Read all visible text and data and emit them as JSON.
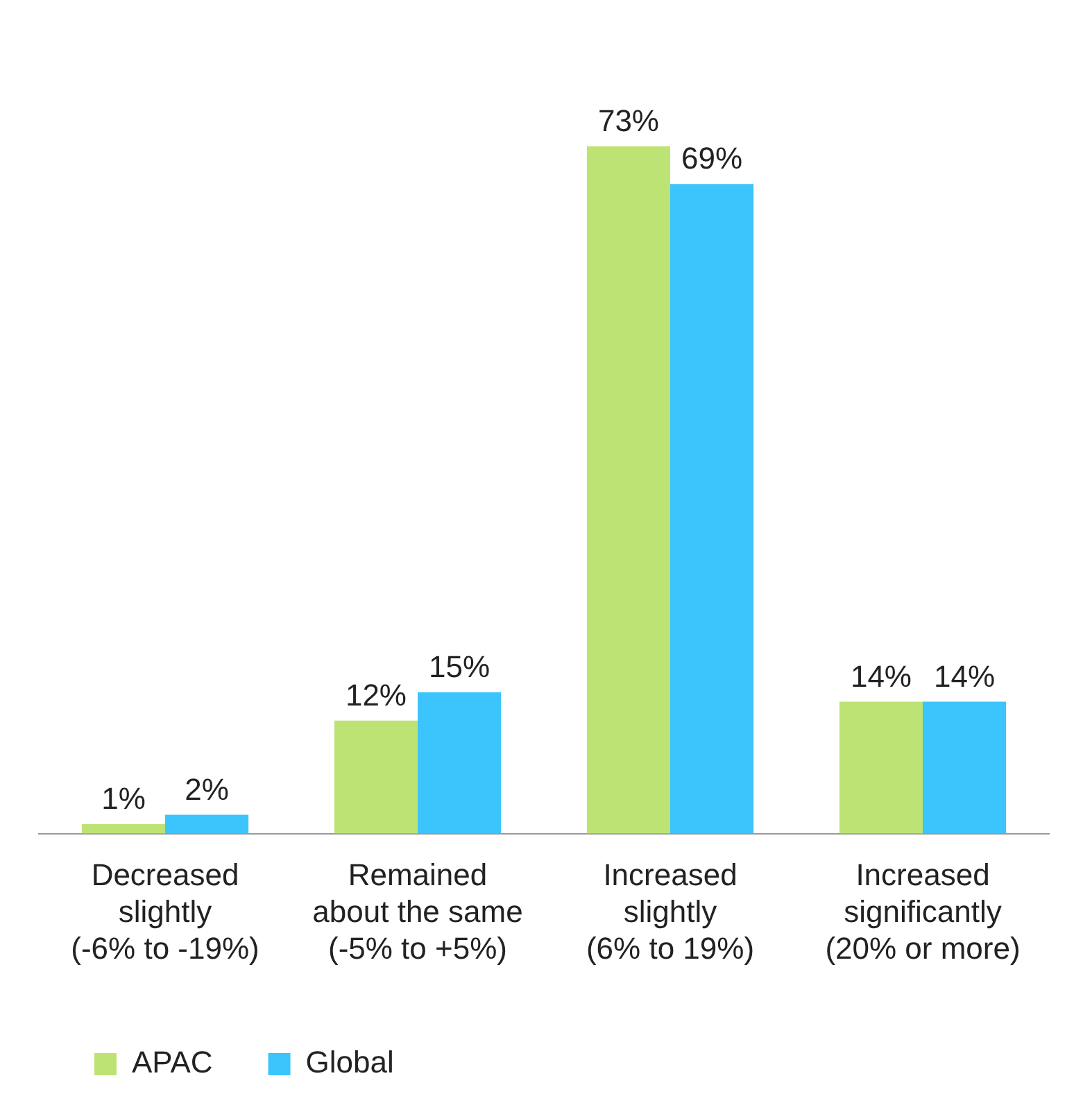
{
  "chart_data": {
    "type": "bar",
    "categories": [
      "Decreased\nslightly\n(-6% to -19%)",
      "Remained\nabout the same\n(-5% to +5%)",
      "Increased\nslightly\n(6% to 19%)",
      "Increased\nsignificantly\n(20% or more)"
    ],
    "series": [
      {
        "name": "APAC",
        "color": "#bde375",
        "values": [
          1,
          12,
          73,
          14
        ],
        "value_labels": [
          "1%",
          "12%",
          "73%",
          "14%"
        ]
      },
      {
        "name": "Global",
        "color": "#3cc4fc",
        "values": [
          2,
          15,
          69,
          14
        ],
        "value_labels": [
          "2%",
          "15%",
          "69%",
          "14%"
        ]
      }
    ],
    "legend": "bottom left",
    "grid": false
  }
}
